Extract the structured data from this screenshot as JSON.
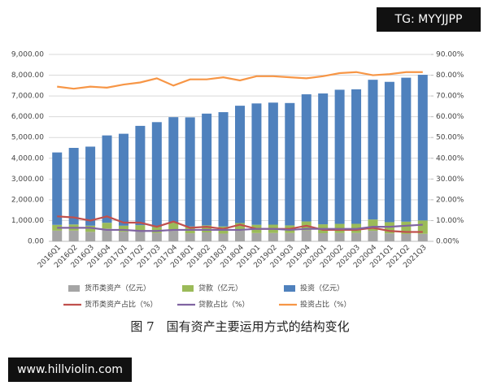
{
  "watermarks": [
    "TG: MYYJJPP",
    "www.hillviolin.com"
  ],
  "chart_data": {
    "type": "bar",
    "caption": "图 7　国有资产主要运用方式的结构变化",
    "categories": [
      "2016Q1",
      "2016Q2",
      "2016Q3",
      "2016Q4",
      "2017Q1",
      "2017Q2",
      "2017Q3",
      "2017Q4",
      "2018Q1",
      "2018Q2",
      "2018Q3",
      "2018Q4",
      "2019Q1",
      "2019Q2",
      "2019Q3",
      "2019Q4",
      "2020Q1",
      "2020Q2",
      "2020Q3",
      "2020Q4",
      "2021Q1",
      "2021Q2",
      "2021Q3"
    ],
    "series": [
      {
        "name": "货币类资产（亿元）",
        "type": "bar",
        "color": "#a5a5a5",
        "values": [
          514,
          518,
          456,
          612,
          466,
          500,
          402,
          568,
          388,
          431,
          373,
          522,
          398,
          401,
          400,
          531,
          392,
          402,
          403,
          506,
          384,
          355,
          361
        ]
      },
      {
        "name": "贷款（亿元）",
        "type": "bar",
        "color": "#9bbb59",
        "values": [
          278,
          293,
          296,
          281,
          285,
          278,
          287,
          329,
          328,
          338,
          342,
          359,
          398,
          401,
          366,
          425,
          427,
          438,
          439,
          545,
          538,
          591,
          642
        ]
      },
      {
        "name": "投资（亿元）",
        "type": "bar",
        "color": "#4f81bd",
        "values": [
          3488,
          3689,
          3808,
          4207,
          4429,
          4782,
          5051,
          5083,
          5254,
          5381,
          5505,
          5649,
          5844,
          5878,
          5894,
          6124,
          6301,
          6460,
          6478,
          6729,
          6758,
          6934,
          7017
        ]
      },
      {
        "name": "货币类资产占比（%）",
        "type": "line",
        "axis": "y2",
        "color": "#c0504d",
        "values": [
          12,
          11.5,
          10,
          12,
          9,
          9,
          7,
          9.5,
          6.5,
          7,
          6,
          8,
          6,
          6,
          6,
          7.5,
          5.5,
          5.5,
          5.5,
          6.5,
          5,
          4.5,
          4.5
        ]
      },
      {
        "name": "贷款占比（%）",
        "type": "line",
        "axis": "y2",
        "color": "#8064a2",
        "values": [
          6.5,
          6.5,
          6.5,
          5.5,
          5.5,
          5,
          5,
          5.5,
          5.5,
          5.5,
          5.5,
          5.5,
          6,
          6,
          5.5,
          6,
          6,
          6,
          6,
          7,
          7,
          7.5,
          8
        ]
      },
      {
        "name": "投资占比（%）",
        "type": "line",
        "axis": "y2",
        "color": "#f79646",
        "values": [
          74.5,
          73.5,
          74.5,
          74,
          75.5,
          76.5,
          78.5,
          75,
          78,
          78,
          79,
          77.5,
          79.5,
          79.5,
          79,
          78.5,
          79.5,
          81,
          81.5,
          80,
          80.5,
          81.5,
          81.5
        ]
      }
    ],
    "ylim": [
      0,
      9000
    ],
    "yticks": [
      {
        "value": 0,
        "label": "0.00"
      },
      {
        "value": 1000,
        "label": "1,000.00"
      },
      {
        "value": 2000,
        "label": "2,000.00"
      },
      {
        "value": 3000,
        "label": "3,000.00"
      },
      {
        "value": 4000,
        "label": "4,000.00"
      },
      {
        "value": 5000,
        "label": "5,000.00"
      },
      {
        "value": 6000,
        "label": "6,000.00"
      },
      {
        "value": 7000,
        "label": "7,000.00"
      },
      {
        "value": 8000,
        "label": "8,000.00"
      },
      {
        "value": 9000,
        "label": "9,000.00"
      }
    ],
    "y2lim": [
      0,
      90
    ],
    "y2ticks": [
      {
        "value": 0,
        "label": "0.00%"
      },
      {
        "value": 10,
        "label": "10.00%"
      },
      {
        "value": 20,
        "label": "20.00%"
      },
      {
        "value": 30,
        "label": "30.00%"
      },
      {
        "value": 40,
        "label": "40.00%"
      },
      {
        "value": 50,
        "label": "50.00%"
      },
      {
        "value": 60,
        "label": "60.00%"
      },
      {
        "value": 70,
        "label": "70.00%"
      },
      {
        "value": 80,
        "label": "80.00%"
      },
      {
        "value": 90,
        "label": "90.00%"
      }
    ],
    "grid": true,
    "legend": "bottom"
  }
}
